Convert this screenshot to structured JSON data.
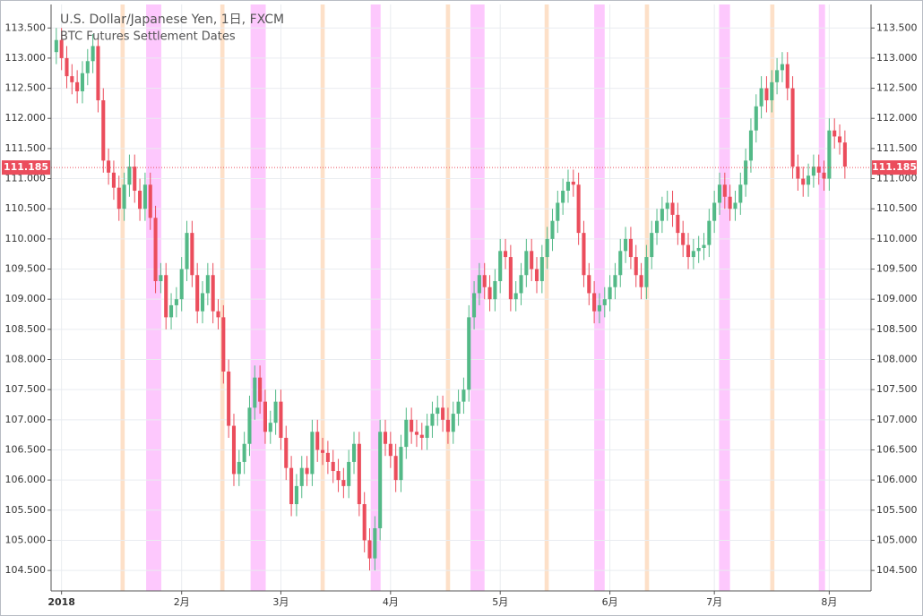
{
  "chart_data": {
    "type": "candlestick",
    "title": "U.S. Dollar/Japanese Yen, 1日, FXCM",
    "subtitle": "BTC Futures Settlement Dates",
    "up_color": "#53b987",
    "down_color": "#eb4d5c",
    "grid": true,
    "last_price": 111.185,
    "xlim": [
      -1,
      156
    ],
    "ylim": [
      104.16,
      113.89
    ],
    "xticks": [
      {
        "value": 1,
        "label": "2018"
      },
      {
        "value": 24,
        "label": "2月"
      },
      {
        "value": 43,
        "label": "3月"
      },
      {
        "value": 64,
        "label": "4月"
      },
      {
        "value": 85,
        "label": "5月"
      },
      {
        "value": 106,
        "label": "6月"
      },
      {
        "value": 126,
        "label": "7月"
      },
      {
        "value": 148,
        "label": "8月"
      }
    ],
    "yticks": [
      {
        "value": 104.5,
        "label": "104.500"
      },
      {
        "value": 105,
        "label": "105.000"
      },
      {
        "value": 105.5,
        "label": "105.500"
      },
      {
        "value": 106,
        "label": "106.000"
      },
      {
        "value": 106.5,
        "label": "106.500"
      },
      {
        "value": 107,
        "label": "107.000"
      },
      {
        "value": 107.5,
        "label": "107.500"
      },
      {
        "value": 108,
        "label": "108.000"
      },
      {
        "value": 108.5,
        "label": "108.500"
      },
      {
        "value": 109,
        "label": "109.000"
      },
      {
        "value": 109.5,
        "label": "109.500"
      },
      {
        "value": 110,
        "label": "110.000"
      },
      {
        "value": 110.5,
        "label": "110.500"
      },
      {
        "value": 111,
        "label": "111.000"
      },
      {
        "value": 111.5,
        "label": "111.500"
      },
      {
        "value": 112,
        "label": "112.000"
      },
      {
        "value": 112.5,
        "label": "112.500"
      },
      {
        "value": 113,
        "label": "113.000"
      },
      {
        "value": 113.5,
        "label": "113.500"
      }
    ],
    "bands": [
      {
        "start": 12.3,
        "end": 13.1,
        "color": "#fde0c8"
      },
      {
        "start": 31.4,
        "end": 32.2,
        "color": "#fde0c8"
      },
      {
        "start": 50.6,
        "end": 51.4,
        "color": "#fde0c8"
      },
      {
        "start": 74.6,
        "end": 75.4,
        "color": "#fde0c8"
      },
      {
        "start": 93.5,
        "end": 94.3,
        "color": "#fde0c8"
      },
      {
        "start": 112.7,
        "end": 113.5,
        "color": "#fde0c8"
      },
      {
        "start": 136.7,
        "end": 137.5,
        "color": "#fde0c8"
      },
      {
        "start": 17.2,
        "end": 20.1,
        "color": "#fdc8fd"
      },
      {
        "start": 37.2,
        "end": 40.1,
        "color": "#fdc8fd"
      },
      {
        "start": 60.2,
        "end": 62.1,
        "color": "#fdc8fd"
      },
      {
        "start": 79.3,
        "end": 82.0,
        "color": "#fdc8fd"
      },
      {
        "start": 103.0,
        "end": 105.0,
        "color": "#fdc8fd"
      },
      {
        "start": 126.9,
        "end": 129.0,
        "color": "#fdc8fd"
      },
      {
        "start": 146.0,
        "end": 147.2,
        "color": "#fdc8fd"
      }
    ],
    "open": [
      113.1,
      113.3,
      113.0,
      112.7,
      112.6,
      112.45,
      112.75,
      112.95,
      113.2,
      112.3,
      111.3,
      111.1,
      110.85,
      110.5,
      110.9,
      111.2,
      110.8,
      110.5,
      110.9,
      110.35,
      109.3,
      109.4,
      108.7,
      108.9,
      109.0,
      109.5,
      110.1,
      109.4,
      108.8,
      109.1,
      109.4,
      108.8,
      108.7,
      107.8,
      106.9,
      106.1,
      106.3,
      106.6,
      107.2,
      107.7,
      107.3,
      106.8,
      106.95,
      107.3,
      106.7,
      106.2,
      105.6,
      105.9,
      106.2,
      106.1,
      106.8,
      106.5,
      106.45,
      106.3,
      106.15,
      106.0,
      105.9,
      106.3,
      106.6,
      105.6,
      105.0,
      104.7,
      105.2,
      106.8,
      106.6,
      106.4,
      106.0,
      106.55,
      107.0,
      106.8,
      106.75,
      106.7,
      106.9,
      107.1,
      107.2,
      107.0,
      106.8,
      107.1,
      107.3,
      107.5,
      108.7,
      109.1,
      109.4,
      109.2,
      109.0,
      109.3,
      109.8,
      109.7,
      109.0,
      109.1,
      109.4,
      109.8,
      109.5,
      109.3,
      109.7,
      110.0,
      110.3,
      110.6,
      110.8,
      110.95,
      110.9,
      110.1,
      109.4,
      109.1,
      108.8,
      108.9,
      109.0,
      109.2,
      109.4,
      109.8,
      110.0,
      109.7,
      109.4,
      109.2,
      109.7,
      110.1,
      110.3,
      110.5,
      110.6,
      110.4,
      110.1,
      109.9,
      109.7,
      109.8,
      109.85,
      109.9,
      110.3,
      110.6,
      110.9,
      110.7,
      110.5,
      110.6,
      110.9,
      111.3,
      111.8,
      112.2,
      112.5,
      112.3,
      112.6,
      112.8,
      112.9,
      112.5,
      111.2,
      111.0,
      110.9,
      111.05,
      111.2,
      111.1,
      111.0,
      111.8,
      111.7,
      111.6
    ],
    "high": [
      113.5,
      113.5,
      113.2,
      112.9,
      112.8,
      112.95,
      113.15,
      113.4,
      113.4,
      112.5,
      111.5,
      111.3,
      111.05,
      111.1,
      111.4,
      111.4,
      111.0,
      111.1,
      111.1,
      110.55,
      109.6,
      109.6,
      109.1,
      109.2,
      109.7,
      110.3,
      110.3,
      109.6,
      109.3,
      109.6,
      109.6,
      109.0,
      108.9,
      108.0,
      107.1,
      106.5,
      106.8,
      107.4,
      107.9,
      107.9,
      107.5,
      107.15,
      107.5,
      107.5,
      106.9,
      106.4,
      106.1,
      106.4,
      106.4,
      107.0,
      107.0,
      106.7,
      106.65,
      106.5,
      106.35,
      106.2,
      106.5,
      106.8,
      106.8,
      105.8,
      105.2,
      105.4,
      107.0,
      107.0,
      106.8,
      106.6,
      106.75,
      107.2,
      107.2,
      107.0,
      106.95,
      107.1,
      107.3,
      107.4,
      107.4,
      107.2,
      107.3,
      107.5,
      107.7,
      108.9,
      109.3,
      109.6,
      109.6,
      109.4,
      109.5,
      110.0,
      110.0,
      109.9,
      109.3,
      109.6,
      110.0,
      110.0,
      109.7,
      109.9,
      110.2,
      110.5,
      110.8,
      111.0,
      111.15,
      111.15,
      111.1,
      110.3,
      109.6,
      109.3,
      109.1,
      109.2,
      109.4,
      109.6,
      110.0,
      110.2,
      110.2,
      109.9,
      109.6,
      109.9,
      110.3,
      110.5,
      110.7,
      110.8,
      110.8,
      110.6,
      110.3,
      110.1,
      110.0,
      110.05,
      110.1,
      110.5,
      110.8,
      111.1,
      111.1,
      110.9,
      110.8,
      111.1,
      111.5,
      112.0,
      112.4,
      112.7,
      112.7,
      112.8,
      113.0,
      113.1,
      113.1,
      112.7,
      111.4,
      111.2,
      111.25,
      111.4,
      111.4,
      111.3,
      112.0,
      112.0,
      111.9,
      111.8
    ],
    "low": [
      112.9,
      112.8,
      112.5,
      112.4,
      112.25,
      112.25,
      112.55,
      112.75,
      112.1,
      111.1,
      110.9,
      110.65,
      110.3,
      110.3,
      110.7,
      110.6,
      110.3,
      110.3,
      110.15,
      109.1,
      109.1,
      108.5,
      108.5,
      108.7,
      108.8,
      109.3,
      109.2,
      108.6,
      108.6,
      108.9,
      108.6,
      108.5,
      107.6,
      106.7,
      105.9,
      105.9,
      106.1,
      106.4,
      107.0,
      107.1,
      106.6,
      106.6,
      106.75,
      106.5,
      106.0,
      105.4,
      105.4,
      105.7,
      105.9,
      105.9,
      106.3,
      106.25,
      106.1,
      105.95,
      105.8,
      105.7,
      105.7,
      106.1,
      105.4,
      104.8,
      104.5,
      104.5,
      105.0,
      106.4,
      106.2,
      105.8,
      105.8,
      106.35,
      106.6,
      106.55,
      106.5,
      106.5,
      106.7,
      106.9,
      106.8,
      106.6,
      106.6,
      106.9,
      107.1,
      107.3,
      108.5,
      108.9,
      109.0,
      108.8,
      108.8,
      109.1,
      109.5,
      108.8,
      108.8,
      108.9,
      109.2,
      109.3,
      109.1,
      109.1,
      109.5,
      109.8,
      110.1,
      110.4,
      110.6,
      110.7,
      109.9,
      109.2,
      108.9,
      108.6,
      108.6,
      108.7,
      108.8,
      109.0,
      109.2,
      109.6,
      109.5,
      109.2,
      109.0,
      109.0,
      109.5,
      109.9,
      110.1,
      110.3,
      110.2,
      109.9,
      109.7,
      109.5,
      109.5,
      109.6,
      109.65,
      109.7,
      110.1,
      110.4,
      110.5,
      110.3,
      110.3,
      110.4,
      110.7,
      111.1,
      111.6,
      112.0,
      112.1,
      112.1,
      112.4,
      112.6,
      112.3,
      111.0,
      110.8,
      110.7,
      110.7,
      110.85,
      110.9,
      110.8,
      110.8,
      111.5,
      111.4,
      111.0
    ],
    "close": [
      113.3,
      113.0,
      112.7,
      112.6,
      112.45,
      112.75,
      112.95,
      113.2,
      112.3,
      111.3,
      111.1,
      110.85,
      110.5,
      110.9,
      111.2,
      110.8,
      110.5,
      110.9,
      110.35,
      109.3,
      109.4,
      108.7,
      108.9,
      109.0,
      109.5,
      110.1,
      109.4,
      108.8,
      109.1,
      109.4,
      108.8,
      108.7,
      107.8,
      106.9,
      106.1,
      106.3,
      106.6,
      107.2,
      107.7,
      107.3,
      106.8,
      106.95,
      107.3,
      106.7,
      106.2,
      105.6,
      105.9,
      106.2,
      106.1,
      106.8,
      106.5,
      106.45,
      106.3,
      106.15,
      106.0,
      105.9,
      106.3,
      106.6,
      105.6,
      105.0,
      104.7,
      105.2,
      106.8,
      106.6,
      106.4,
      106.0,
      106.55,
      107.0,
      106.8,
      106.75,
      106.7,
      106.9,
      107.1,
      107.2,
      107.0,
      106.8,
      107.1,
      107.3,
      107.5,
      108.7,
      109.1,
      109.4,
      109.2,
      109.0,
      109.3,
      109.8,
      109.7,
      109.0,
      109.1,
      109.4,
      109.8,
      109.5,
      109.3,
      109.7,
      110.0,
      110.3,
      110.6,
      110.8,
      110.95,
      110.9,
      110.1,
      109.4,
      109.1,
      108.8,
      108.9,
      109.0,
      109.2,
      109.4,
      109.8,
      110.0,
      109.7,
      109.4,
      109.2,
      109.7,
      110.1,
      110.3,
      110.5,
      110.6,
      110.4,
      110.1,
      109.9,
      109.7,
      109.8,
      109.85,
      109.9,
      110.3,
      110.6,
      110.9,
      110.7,
      110.5,
      110.6,
      110.9,
      111.3,
      111.8,
      112.2,
      112.5,
      112.3,
      112.6,
      112.8,
      112.9,
      112.5,
      111.2,
      111.0,
      110.9,
      111.05,
      111.2,
      111.1,
      111.0,
      111.8,
      111.7,
      111.6,
      111.2
    ]
  }
}
